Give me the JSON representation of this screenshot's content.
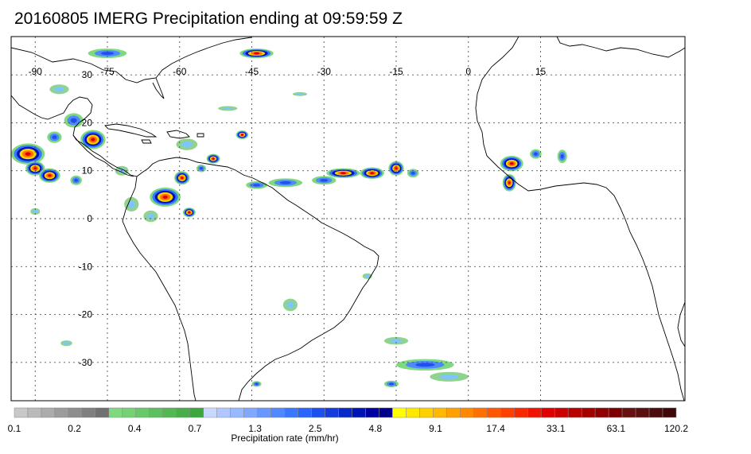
{
  "title": "20160805 IMERG Precipitation ending at 09:59:59 Z",
  "map": {
    "lon_range": [
      -95,
      45
    ],
    "lat_range": [
      -38,
      38
    ],
    "lon_ticks": [
      -90,
      -75,
      -60,
      -45,
      -30,
      -15,
      0,
      15
    ],
    "lat_ticks": [
      30,
      20,
      10,
      0,
      -10,
      -20,
      -30
    ],
    "lon_tick_labels": [
      "-90",
      "-75",
      "-60",
      "-45",
      "-30",
      "-15",
      "0",
      "15"
    ],
    "lat_tick_labels": [
      "30",
      "20",
      "10",
      "0",
      "-10",
      "-20",
      "-30"
    ],
    "grid": true,
    "background_color": "#ffffff",
    "coast_color": "#000000"
  },
  "colorbar": {
    "label": "Precipitation rate (mm/hr)",
    "tick_labels": [
      "0.1",
      "0.2",
      "0.4",
      "0.7",
      "1.3",
      "2.5",
      "4.8",
      "9.1",
      "17.4",
      "33.1",
      "63.1",
      "120.2"
    ],
    "colors": [
      "#c8c8c8",
      "#bababa",
      "#ababab",
      "#9c9c9c",
      "#8e8e8e",
      "#7f7f7f",
      "#707070",
      "#7fd97f",
      "#74d174",
      "#69c869",
      "#5ebf5e",
      "#53b753",
      "#48ae48",
      "#3da63d",
      "#c8d8ff",
      "#b0c8ff",
      "#98b8ff",
      "#80a8ff",
      "#6898ff",
      "#5088ff",
      "#3878ff",
      "#2a64ff",
      "#1e50f0",
      "#143cdc",
      "#0a28c8",
      "#0014b4",
      "#0000a0",
      "#00008c",
      "#ffff00",
      "#ffe800",
      "#ffd000",
      "#ffb800",
      "#ffa000",
      "#ff8800",
      "#ff7000",
      "#ff5800",
      "#ff4000",
      "#f82800",
      "#f01400",
      "#e00000",
      "#cc0000",
      "#b80000",
      "#a40000",
      "#900000",
      "#7c0000",
      "#681010",
      "#5a1010",
      "#4c0c0c",
      "#400808"
    ]
  },
  "rain_cells": [
    {
      "lon": -91.5,
      "lat": 13.5,
      "rx": 3.5,
      "ry": 2.2,
      "level": "heavy"
    },
    {
      "lon": -90,
      "lat": 10.5,
      "rx": 2.0,
      "ry": 1.5,
      "level": "heavy"
    },
    {
      "lon": -82,
      "lat": 20.5,
      "rx": 2.0,
      "ry": 1.5,
      "level": "moderate"
    },
    {
      "lon": -78,
      "lat": 16.5,
      "rx": 2.6,
      "ry": 2.0,
      "level": "heavy"
    },
    {
      "lon": -86,
      "lat": 17,
      "rx": 1.5,
      "ry": 1.2,
      "level": "moderate"
    },
    {
      "lon": -87,
      "lat": 9,
      "rx": 2.2,
      "ry": 1.5,
      "level": "heavy"
    },
    {
      "lon": -81.5,
      "lat": 8,
      "rx": 1.2,
      "ry": 1.0,
      "level": "moderate"
    },
    {
      "lon": -63,
      "lat": 4.5,
      "rx": 3.2,
      "ry": 2.0,
      "level": "heavy"
    },
    {
      "lon": -59.5,
      "lat": 8.5,
      "rx": 1.6,
      "ry": 1.4,
      "level": "heavy"
    },
    {
      "lon": -58,
      "lat": 1.3,
      "rx": 1.3,
      "ry": 1.0,
      "level": "heavy"
    },
    {
      "lon": -53,
      "lat": 12.5,
      "rx": 1.4,
      "ry": 1.0,
      "level": "heavy"
    },
    {
      "lon": -55.5,
      "lat": 10.5,
      "rx": 1.0,
      "ry": 0.8,
      "level": "moderate"
    },
    {
      "lon": -58.5,
      "lat": 15.5,
      "rx": 2.2,
      "ry": 1.2,
      "level": "light"
    },
    {
      "lon": -47,
      "lat": 17.5,
      "rx": 1.3,
      "ry": 0.9,
      "level": "heavy"
    },
    {
      "lon": -44,
      "lat": 34.5,
      "rx": 3.5,
      "ry": 1.0,
      "level": "heavy"
    },
    {
      "lon": -75,
      "lat": 34.5,
      "rx": 4.0,
      "ry": 1.0,
      "level": "moderate"
    },
    {
      "lon": -26,
      "lat": 9.5,
      "rx": 3.5,
      "ry": 1.0,
      "level": "heavy"
    },
    {
      "lon": -30,
      "lat": 8,
      "rx": 2.5,
      "ry": 0.9,
      "level": "moderate"
    },
    {
      "lon": -20,
      "lat": 9.5,
      "rx": 2.5,
      "ry": 1.2,
      "level": "heavy"
    },
    {
      "lon": -15,
      "lat": 10.5,
      "rx": 1.6,
      "ry": 1.5,
      "level": "heavy"
    },
    {
      "lon": -11.5,
      "lat": 9.5,
      "rx": 1.2,
      "ry": 0.9,
      "level": "moderate"
    },
    {
      "lon": -38,
      "lat": 7.5,
      "rx": 3.5,
      "ry": 0.9,
      "level": "moderate"
    },
    {
      "lon": -44,
      "lat": 7,
      "rx": 2.2,
      "ry": 0.8,
      "level": "moderate"
    },
    {
      "lon": 9,
      "lat": 11.5,
      "rx": 2.4,
      "ry": 1.6,
      "level": "heavy"
    },
    {
      "lon": 8.5,
      "lat": 7.5,
      "rx": 1.4,
      "ry": 1.8,
      "level": "heavy"
    },
    {
      "lon": 14,
      "lat": 13.5,
      "rx": 1.2,
      "ry": 1.0,
      "level": "moderate"
    },
    {
      "lon": 19.5,
      "lat": 13,
      "rx": 1.0,
      "ry": 1.4,
      "level": "moderate"
    },
    {
      "lon": -9,
      "lat": -30.5,
      "rx": 6.0,
      "ry": 1.2,
      "level": "moderate"
    },
    {
      "lon": -4,
      "lat": -33,
      "rx": 4.0,
      "ry": 1.0,
      "level": "light"
    },
    {
      "lon": -16,
      "lat": -34.5,
      "rx": 1.5,
      "ry": 0.7,
      "level": "moderate"
    },
    {
      "lon": -44,
      "lat": -34.5,
      "rx": 1.0,
      "ry": 0.6,
      "level": "moderate"
    },
    {
      "lon": -37,
      "lat": -18,
      "rx": 1.5,
      "ry": 1.3,
      "level": "light"
    },
    {
      "lon": -15,
      "lat": -25.5,
      "rx": 2.5,
      "ry": 0.8,
      "level": "light"
    },
    {
      "lon": -21,
      "lat": -12,
      "rx": 1.0,
      "ry": 0.6,
      "level": "light"
    },
    {
      "lon": -83.5,
      "lat": -26,
      "rx": 1.2,
      "ry": 0.6,
      "level": "light"
    },
    {
      "lon": -90,
      "lat": 1.5,
      "rx": 1.0,
      "ry": 0.7,
      "level": "light"
    },
    {
      "lon": -70,
      "lat": 3,
      "rx": 1.5,
      "ry": 1.5,
      "level": "light"
    },
    {
      "lon": -66,
      "lat": 0.5,
      "rx": 1.5,
      "ry": 1.2,
      "level": "light"
    },
    {
      "lon": -72,
      "lat": 10,
      "rx": 1.4,
      "ry": 1.0,
      "level": "light"
    },
    {
      "lon": -50,
      "lat": 23,
      "rx": 2.0,
      "ry": 0.5,
      "level": "light"
    },
    {
      "lon": -35,
      "lat": 26,
      "rx": 1.5,
      "ry": 0.4,
      "level": "light"
    },
    {
      "lon": -85,
      "lat": 27,
      "rx": 2.0,
      "ry": 1.0,
      "level": "light"
    }
  ]
}
